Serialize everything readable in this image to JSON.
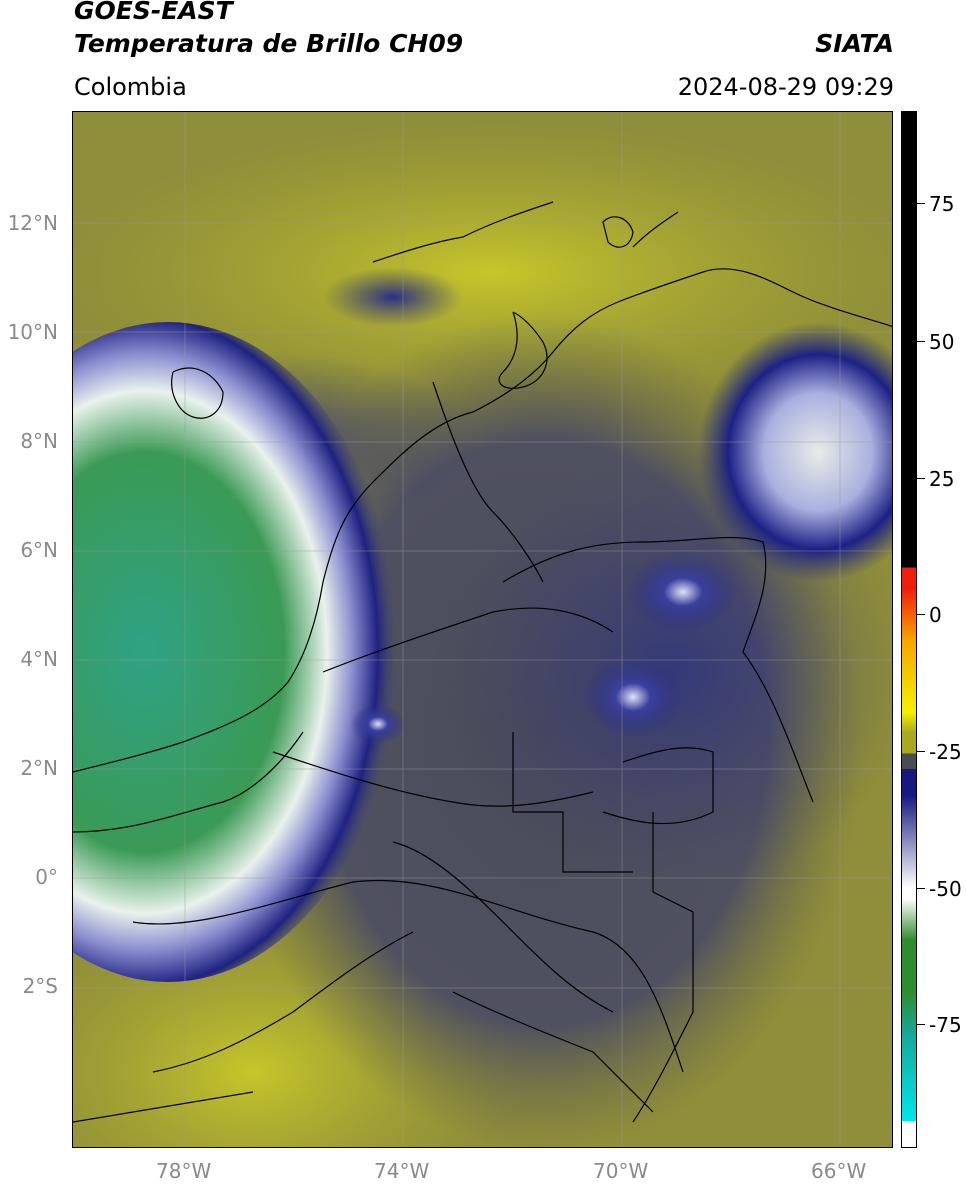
{
  "header": {
    "satellite": "GOES-EAST",
    "product": "Temperatura de Brillo CH09",
    "org": "SIATA",
    "region": "Colombia",
    "datetime": "2024-08-29 09:29"
  },
  "map": {
    "lat_labels": [
      "12°N",
      "10°N",
      "8°N",
      "6°N",
      "4°N",
      "2°N",
      "0°",
      "2°S"
    ],
    "lon_labels": [
      "78°W",
      "74°W",
      "70°W",
      "66°W"
    ]
  },
  "colorbar": {
    "labels": [
      "75",
      "50",
      "25",
      "0",
      "-25",
      "-50",
      "-75"
    ],
    "colors": {
      "black": "#000000",
      "red": "#ef1d0b",
      "orange": "#f6a500",
      "yellow": "#f4f000",
      "olive": "#a9a823",
      "gray": "#4a4c55",
      "navy": "#161a80",
      "white": "#ffffff",
      "green": "#2f8d2e",
      "teal": "#16a899",
      "cyan": "#00e7ee"
    }
  }
}
